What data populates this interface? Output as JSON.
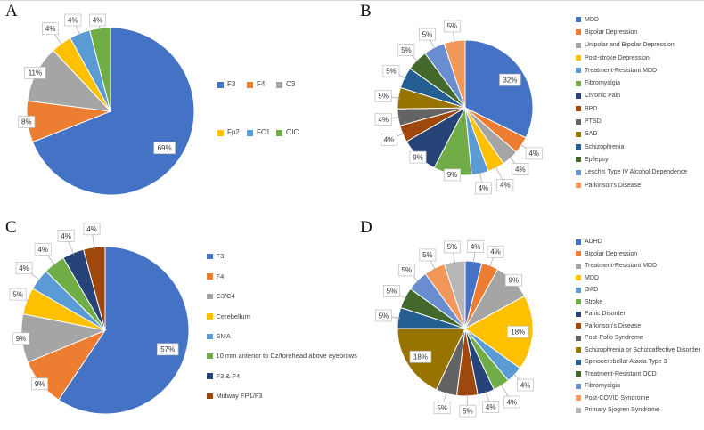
{
  "chart_data": [
    {
      "panel": "A",
      "type": "pie",
      "legend_position": "right",
      "labels": [
        "F3",
        "F4",
        "C3",
        "Fp2",
        "FC1",
        "OIC"
      ],
      "values": [
        69,
        8,
        11,
        4,
        4,
        4
      ],
      "colors": [
        "#4472C4",
        "#ED7D31",
        "#A5A5A5",
        "#FFC000",
        "#5B9BD5",
        "#70AD47"
      ]
    },
    {
      "panel": "B",
      "type": "pie",
      "legend_position": "right",
      "labels": [
        "MDD",
        "Bipolar Depression",
        "Unipolar and Bipolar Depression",
        "Post-stroke Depression",
        "Treatment-Resistant MDD",
        "Fibromyalgia",
        "Chronic Pain",
        "BPD",
        "PTSD",
        "SAD",
        "Schizophrenia",
        "Epilepsy",
        "Lesch's Type IV Alcohol Dependence",
        "Parkinson's Disease"
      ],
      "values": [
        32,
        4,
        4,
        4,
        4,
        9,
        9,
        4,
        4,
        5,
        5,
        5,
        5,
        5
      ],
      "colors": [
        "#4472C4",
        "#ED7D31",
        "#A5A5A5",
        "#FFC000",
        "#5B9BD5",
        "#70AD47",
        "#264478",
        "#9E480E",
        "#636363",
        "#997300",
        "#255E91",
        "#43682B",
        "#698ED0",
        "#F1975A"
      ]
    },
    {
      "panel": "C",
      "type": "pie",
      "legend_position": "right",
      "labels": [
        "F3",
        "F4",
        "C3/C4",
        "Cerebellum",
        "SMA",
        "10 mm anterior to Cz/forehead above eyebrows",
        "F3 & F4",
        "Midway FP1/F3"
      ],
      "values": [
        57,
        9,
        9,
        5,
        4,
        4,
        4,
        4
      ],
      "colors": [
        "#4472C4",
        "#ED7D31",
        "#A5A5A5",
        "#FFC000",
        "#5B9BD5",
        "#70AD47",
        "#264478",
        "#9E480E"
      ]
    },
    {
      "panel": "D",
      "type": "pie",
      "legend_position": "right",
      "labels": [
        "ADHD",
        "Bipolar Depression",
        "Treatment-Resistant MDD",
        "MDD",
        "GAD",
        "Stroke",
        "Panic Disorder",
        "Parkinson's Disease",
        "Post-Polio Syndrome",
        "Schizophrenia or Schizoaffective Disorder",
        "Spinocerebellar Ataxia Type 3",
        "Treatment-Resistant OCD",
        "Fibromyalgia",
        "Post-COVID Syndrome",
        "Primary Sjogren Syndrome"
      ],
      "values": [
        4,
        4,
        9,
        18,
        4,
        4,
        4,
        5,
        5,
        18,
        5,
        5,
        5,
        5,
        5
      ],
      "colors": [
        "#4472C4",
        "#ED7D31",
        "#A5A5A5",
        "#FFC000",
        "#5B9BD5",
        "#70AD47",
        "#264478",
        "#9E480E",
        "#636363",
        "#997300",
        "#255E91",
        "#43682B",
        "#698ED0",
        "#F1975A",
        "#B7B7B7"
      ]
    }
  ],
  "style": {
    "label_box_fill": "#ffffff",
    "label_box_border": "#bdbdbd",
    "label_text_color": "#333333",
    "legend_text_color": "#3f3f3f"
  }
}
